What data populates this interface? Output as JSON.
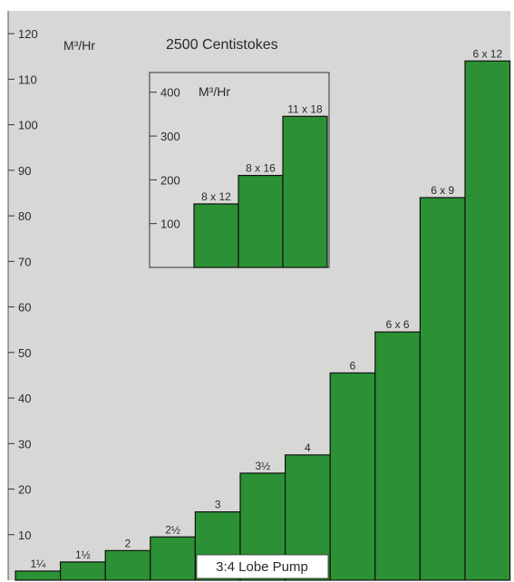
{
  "colors": {
    "background": "#d7d8d5",
    "bar": "#2b9134",
    "bar_edge": "#111111",
    "inset_background": "#d9dad7",
    "footer_box": "#ffffff"
  },
  "chart_data": [
    {
      "type": "bar",
      "title": "2500 Centistokes",
      "ylabel": "M³/Hr",
      "ylim": [
        0,
        125
      ],
      "yticks": [
        10,
        20,
        30,
        40,
        50,
        60,
        70,
        80,
        90,
        100,
        110,
        120
      ],
      "categories": [
        "1¼",
        "1½",
        "2",
        "2½",
        "3",
        "3½",
        "4",
        "6",
        "6 x 6",
        "6 x 9",
        "6 x 12"
      ],
      "values": [
        2,
        4,
        6.5,
        9.5,
        15,
        23.5,
        27.5,
        45.5,
        54.5,
        84,
        114
      ],
      "footer": "3:4 Lobe Pump",
      "grid": false
    },
    {
      "type": "bar",
      "ylabel": "M³/Hr",
      "ylim": [
        0,
        445
      ],
      "yticks": [
        100,
        200,
        300,
        400
      ],
      "categories": [
        "8 x 12",
        "8 x 16",
        "11 x 18"
      ],
      "values": [
        145,
        210,
        345
      ],
      "grid": false
    }
  ]
}
